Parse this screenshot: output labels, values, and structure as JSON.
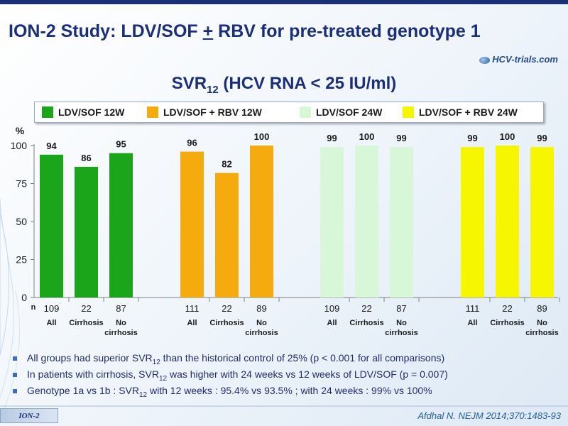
{
  "slide": {
    "title_part1": "ION-2 Study: LDV/SOF ",
    "title_plus": "+",
    "title_part2": " RBV for pre-treated genotype 1",
    "brand": "HCV-trials.com",
    "footer_tag": "ION-2",
    "citation": "Afdhal N. NEJM 2014;370:1483-93"
  },
  "chart_heading": {
    "main": "SVR",
    "sub": "12",
    "rest": " (HCV RNA < 25 IU/ml)"
  },
  "notes": [
    {
      "pre": "All groups had superior SVR",
      "sub": "12",
      "post": " than the historical control of 25% (p < 0.001 for all comparisons)"
    },
    {
      "pre": "In patients with cirrhosis, SVR",
      "sub": "12",
      "post": " was higher with 24 weeks vs 12 weeks of LDV/SOF (p = 0.007)"
    },
    {
      "pre": "Genotype 1a vs 1b : SVR",
      "sub": "12",
      "post": " with 12 weeks : 95.4% vs 93.5% ; with 24 weeks : 99% vs 100%"
    }
  ],
  "colors": {
    "green": "#1ba51b",
    "orange": "#f5ab0d",
    "lightgreen": "#d8f7d8",
    "yellow": "#f6f600"
  },
  "chart_data": {
    "type": "bar",
    "ylabel": "%",
    "ylim": [
      0,
      100
    ],
    "yticks": [
      0,
      25,
      50,
      75,
      100
    ],
    "n_label": "n",
    "grid": false,
    "legend_position": "top",
    "series": [
      {
        "name": "LDV/SOF 12W",
        "color": "#1ba51b",
        "groups": [
          {
            "label": "All",
            "value": 94,
            "n": 109
          },
          {
            "label": "Cirrhosis",
            "value": 86,
            "n": 22
          },
          {
            "label": "No cirrhosis",
            "value": 95,
            "n": 87
          }
        ]
      },
      {
        "name": "LDV/SOF + RBV 12W",
        "color": "#f5ab0d",
        "groups": [
          {
            "label": "All",
            "value": 96,
            "n": 111
          },
          {
            "label": "Cirrhosis",
            "value": 82,
            "n": 22
          },
          {
            "label": "No cirrhosis",
            "value": 100,
            "n": 89
          }
        ]
      },
      {
        "name": "LDV/SOF 24W",
        "color": "#d8f7d8",
        "groups": [
          {
            "label": "All",
            "value": 99,
            "n": 109
          },
          {
            "label": "Cirrhosis",
            "value": 100,
            "n": 22
          },
          {
            "label": "No cirrhosis",
            "value": 99,
            "n": 87
          }
        ]
      },
      {
        "name": "LDV/SOF + RBV 24W",
        "color": "#f6f600",
        "groups": [
          {
            "label": "All",
            "value": 99,
            "n": 111
          },
          {
            "label": "Cirrhosis",
            "value": 100,
            "n": 22
          },
          {
            "label": "No cirrhosis",
            "value": 99,
            "n": 89
          }
        ]
      }
    ]
  }
}
